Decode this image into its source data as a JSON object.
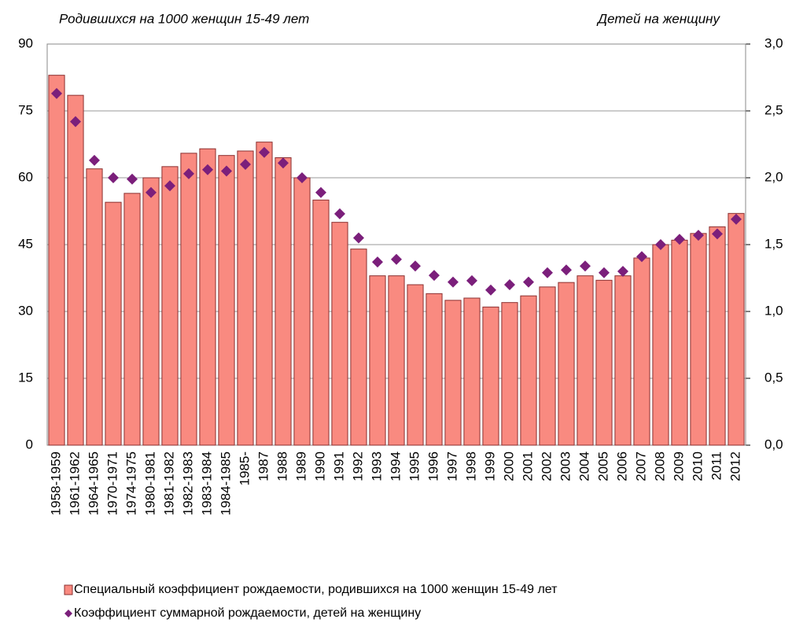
{
  "chart_data": {
    "type": "bar",
    "y_title": "Родившихся на 1000 женщин 15-49 лет",
    "y2_title": "Детей на женщину",
    "categories": [
      "1958-1959",
      "1961-1962",
      "1964-1965",
      "1970-1971",
      "1974-1975",
      "1980-1981",
      "1981-1982",
      "1982-1983",
      "1983-1984",
      "1984-1985",
      "1985-",
      "1987",
      "1988",
      "1989",
      "1990",
      "1991",
      "1992",
      "1993",
      "1994",
      "1995",
      "1996",
      "1997",
      "1998",
      "1999",
      "2000",
      "2001",
      "2002",
      "2003",
      "2004",
      "2005",
      "2006",
      "2007",
      "2008",
      "2009",
      "2010",
      "2011",
      "2012"
    ],
    "series": [
      {
        "name": "Специальный коэффициент рождаемости, родившихся на 1000 женщин 15-49 лет",
        "type": "bar",
        "color": "#f98a80",
        "values": [
          83,
          78.5,
          62,
          54.5,
          56.5,
          60,
          62.5,
          65.5,
          66.5,
          65,
          66,
          68,
          64.5,
          60,
          55,
          50,
          44,
          38,
          38,
          36,
          34,
          32.5,
          33,
          31,
          32,
          33.5,
          35.5,
          36.5,
          38,
          37,
          38,
          42,
          45,
          46,
          47.5,
          49,
          52
        ]
      },
      {
        "name": "Коэффициент суммарной рождаемости, детей на женщину",
        "type": "scatter",
        "axis": "y2",
        "color": "#7b1f7b",
        "values": [
          2.63,
          2.42,
          2.13,
          2.0,
          1.99,
          1.89,
          1.94,
          2.03,
          2.06,
          2.05,
          2.1,
          2.19,
          2.11,
          2.0,
          1.89,
          1.73,
          1.55,
          1.37,
          1.39,
          1.34,
          1.27,
          1.22,
          1.23,
          1.16,
          1.2,
          1.22,
          1.29,
          1.31,
          1.34,
          1.29,
          1.3,
          1.41,
          1.5,
          1.54,
          1.57,
          1.58,
          1.69
        ]
      }
    ],
    "ylim": [
      0,
      90
    ],
    "yticks": [
      0,
      15,
      30,
      45,
      60,
      75,
      90
    ],
    "y2lim": [
      0,
      3
    ],
    "y2ticks": [
      {
        "value": 0,
        "label": "0,0"
      },
      {
        "value": 0.5,
        "label": "0,5"
      },
      {
        "value": 1,
        "label": "1,0"
      },
      {
        "value": 1.5,
        "label": "1,5"
      },
      {
        "value": 2,
        "label": "2,0"
      },
      {
        "value": 2.5,
        "label": "2,5"
      },
      {
        "value": 3,
        "label": "3,0"
      }
    ],
    "grid": true
  }
}
